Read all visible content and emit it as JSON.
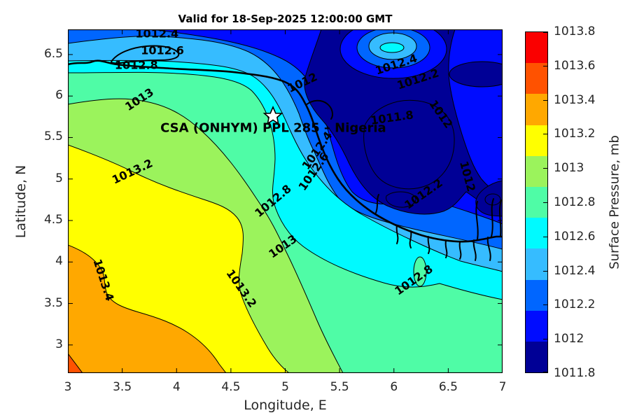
{
  "title": "Valid for 18-Sep-2025 12:00:00 GMT",
  "annotation": {
    "text": "CSA (ONHYM) PPL 285 – Nigeria",
    "marker": "white-star",
    "lon": 4.89,
    "lat": 5.61,
    "marker_lat": 5.76
  },
  "axes": {
    "xlabel": "Longitude, E",
    "ylabel": "Latitude, N",
    "xticks": [
      3,
      3.5,
      4,
      4.5,
      5,
      5.5,
      6,
      6.5,
      7
    ],
    "yticks": [
      6.5,
      6,
      5.5,
      5,
      4.5,
      4,
      3.5,
      3
    ],
    "xlim": [
      3,
      7
    ],
    "ylim": [
      2.66,
      6.8
    ]
  },
  "colorbar": {
    "label": "Surface Pressure, mb",
    "ticks": [
      "1013.8",
      "1013.6",
      "1013.4",
      "1013.2",
      "1013",
      "1012.8",
      "1012.6",
      "1012.4",
      "1012.2",
      "1012",
      "1011.8"
    ],
    "colors": [
      "#FA0000",
      "#FF5200",
      "#FFA800",
      "#FFFF00",
      "#9BF35C",
      "#4FFCA6",
      "#00FAFF",
      "#36BCFF",
      "#0066FF",
      "#000CFF",
      "#000096"
    ]
  },
  "chart_data": {
    "type": "heatmap",
    "subtype": "filled-contour-map",
    "title": "Valid for 18-Sep-2025 12:00:00 GMT",
    "xlabel": "Longitude, E",
    "ylabel": "Latitude, N",
    "value_label": "Surface Pressure, mb",
    "xlim": [
      3,
      7
    ],
    "ylim": [
      2.66,
      6.8
    ],
    "contour_levels": [
      1011.8,
      1012,
      1012.2,
      1012.4,
      1012.6,
      1012.8,
      1013,
      1013.2,
      1013.4,
      1013.6,
      1013.8
    ],
    "value_range": [
      1011.8,
      1013.8
    ],
    "gradient": "pressure decreases from >1013.6 mb at the SW corner to <1011.8 mb in a closed low NE of the Niger Delta; bands run NW-SE",
    "low_center": {
      "value": "<1011.8",
      "lon": 5.9,
      "lat": 5.6
    },
    "high_corner": {
      "value": ">1013.6",
      "lon": 3.05,
      "lat": 2.75
    },
    "contour_labels": [
      {
        "text": "1012.4",
        "lon": 3.82,
        "lat": 6.75,
        "rot": 0
      },
      {
        "text": "1012.6",
        "lon": 3.87,
        "lat": 6.55,
        "rot": 0
      },
      {
        "text": "1012.8",
        "lon": 3.63,
        "lat": 6.37,
        "rot": 0
      },
      {
        "text": "1013",
        "lon": 3.66,
        "lat": 5.96,
        "rot": -33
      },
      {
        "text": "1013.2",
        "lon": 3.59,
        "lat": 5.09,
        "rot": -25
      },
      {
        "text": "1013.4",
        "lon": 3.33,
        "lat": 3.78,
        "rot": 72
      },
      {
        "text": "1013.2",
        "lon": 4.6,
        "lat": 3.68,
        "rot": 55
      },
      {
        "text": "1013",
        "lon": 4.98,
        "lat": 4.19,
        "rot": -35
      },
      {
        "text": "1012.8",
        "lon": 4.89,
        "lat": 4.74,
        "rot": -40
      },
      {
        "text": "1012.4",
        "lon": 5.29,
        "lat": 5.34,
        "rot": -55
      },
      {
        "text": "1012.6",
        "lon": 5.26,
        "lat": 5.09,
        "rot": -55
      },
      {
        "text": "1012",
        "lon": 5.16,
        "lat": 6.16,
        "rot": -25
      },
      {
        "text": "1012.4",
        "lon": 6.02,
        "lat": 6.38,
        "rot": -18
      },
      {
        "text": "1012.2",
        "lon": 6.22,
        "lat": 6.2,
        "rot": -18
      },
      {
        "text": "1011.8",
        "lon": 5.98,
        "lat": 5.74,
        "rot": -8
      },
      {
        "text": "1012",
        "lon": 6.43,
        "lat": 5.78,
        "rot": 55
      },
      {
        "text": "1012.2",
        "lon": 6.27,
        "lat": 4.82,
        "rot": -35
      },
      {
        "text": "1012",
        "lon": 6.68,
        "lat": 5.03,
        "rot": 75
      },
      {
        "text": "1012.8",
        "lon": 6.18,
        "lat": 3.78,
        "rot": -35
      }
    ]
  }
}
